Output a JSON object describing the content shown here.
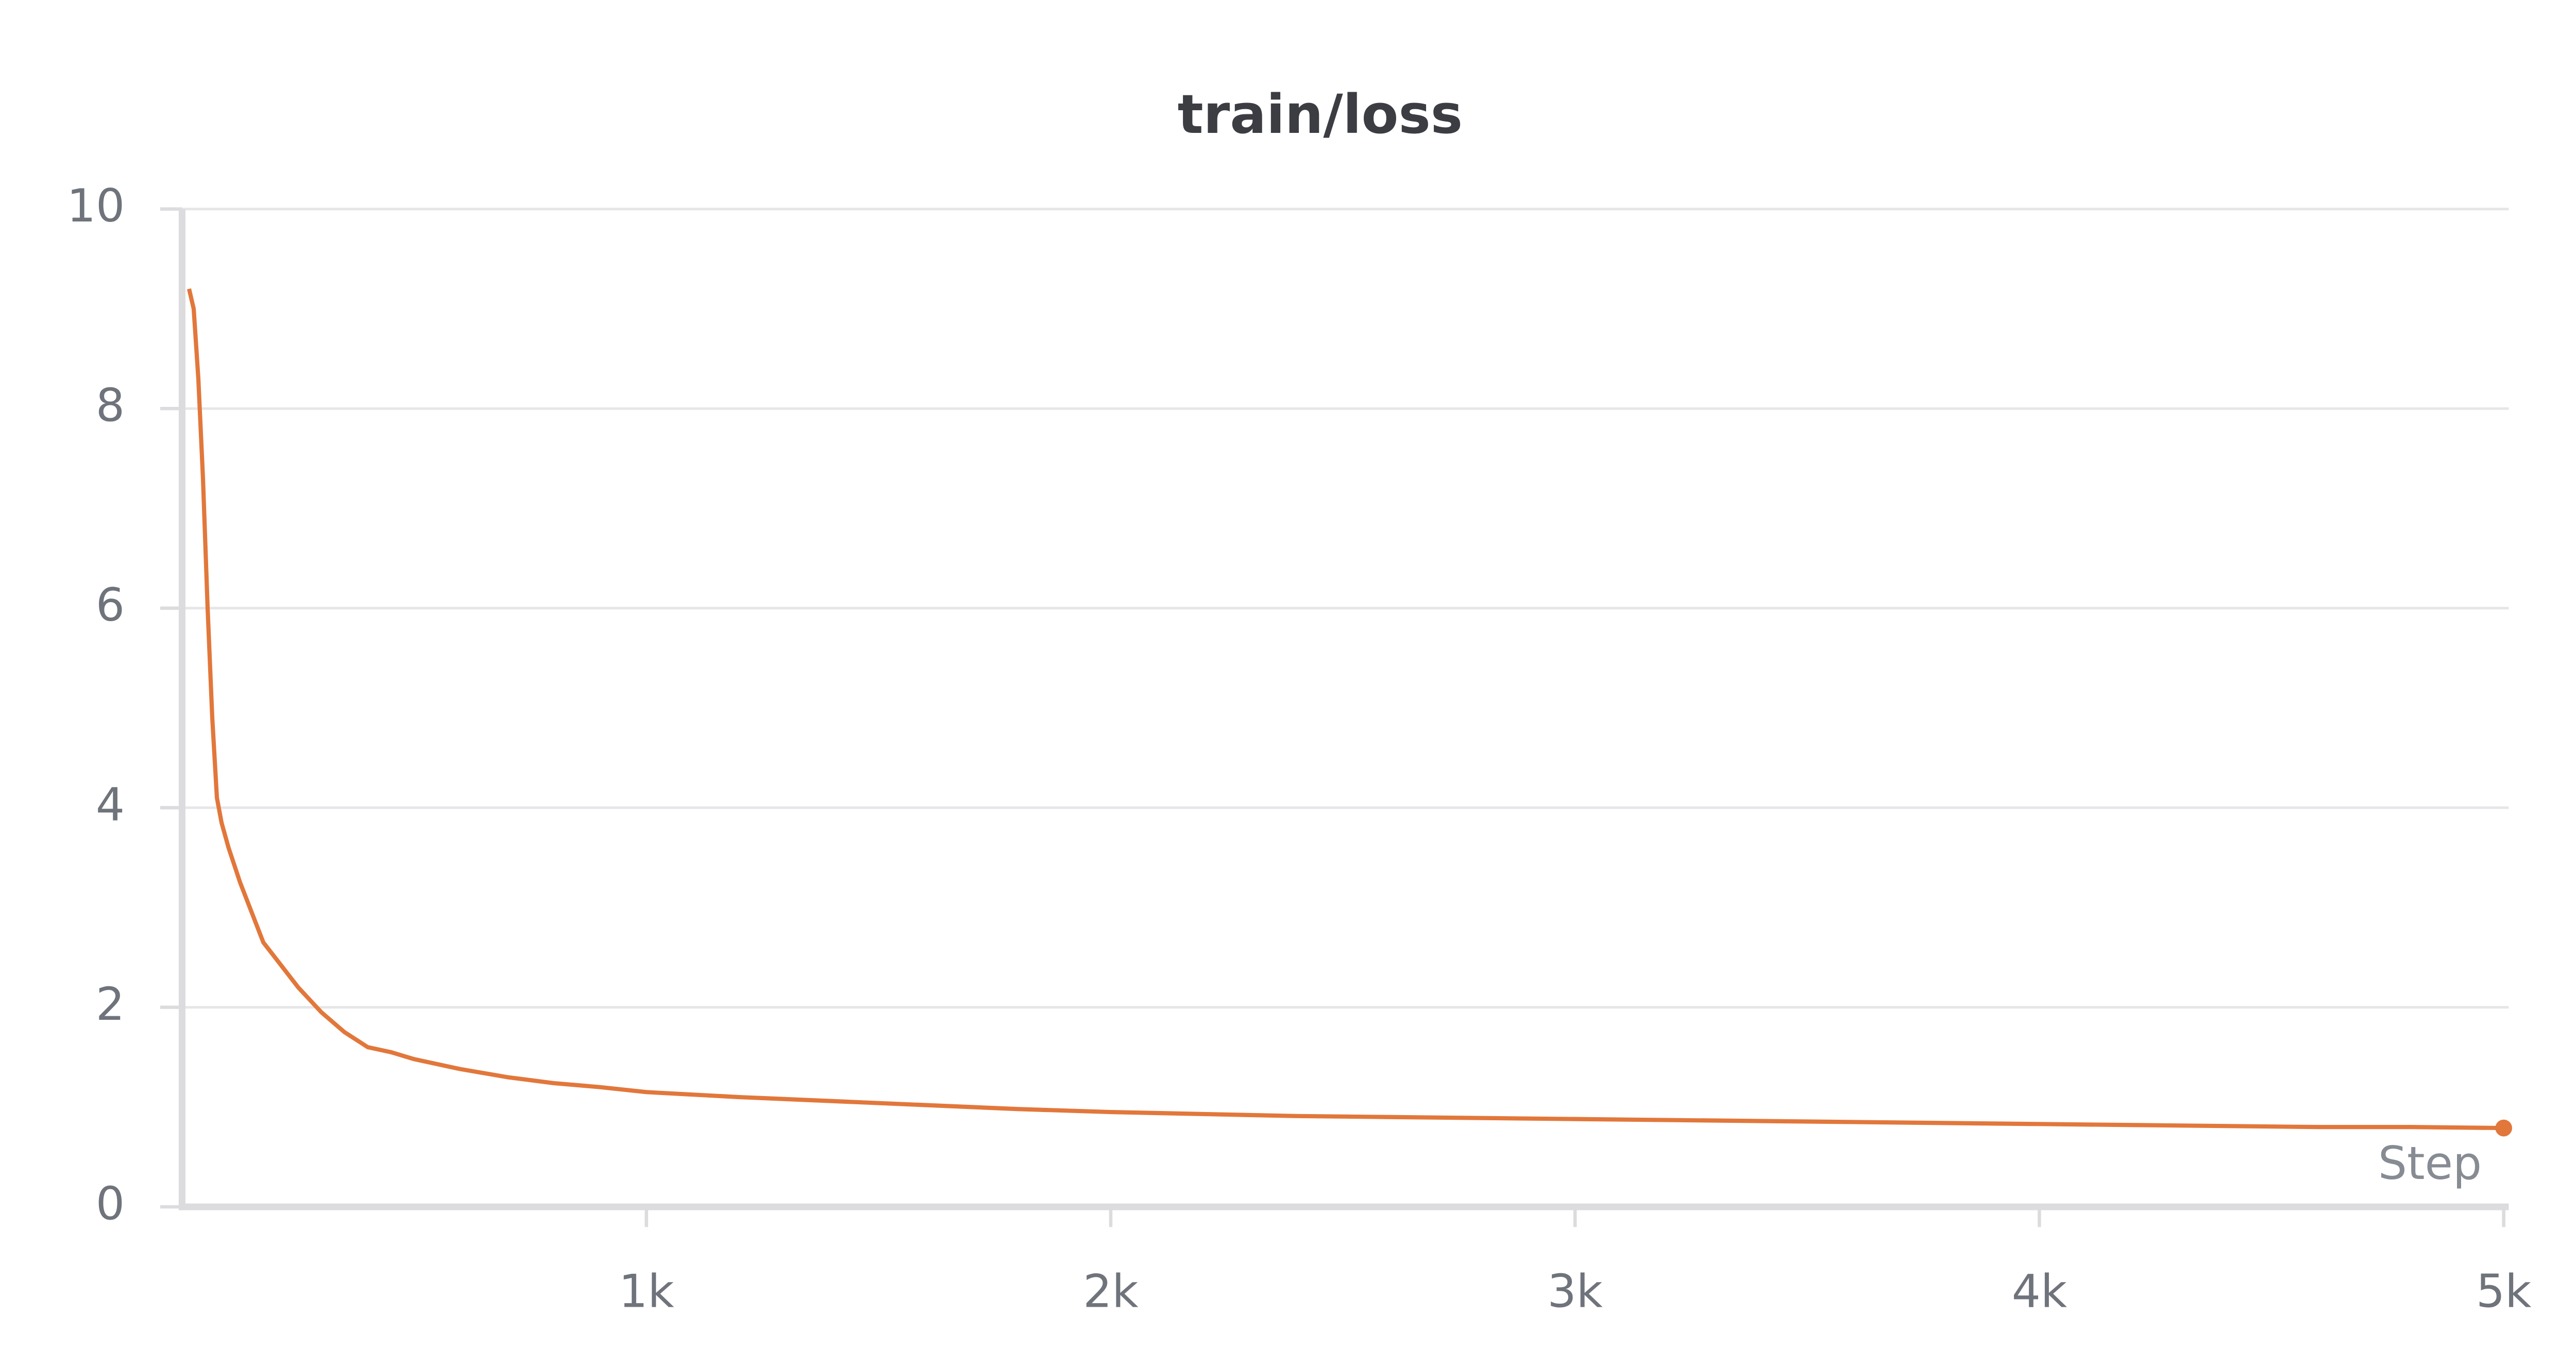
{
  "chart_data": {
    "type": "line",
    "title": "train/loss",
    "x_label": "Step",
    "x": [
      15,
      25,
      35,
      45,
      55,
      65,
      75,
      85,
      100,
      125,
      150,
      175,
      200,
      250,
      300,
      350,
      400,
      450,
      500,
      600,
      700,
      800,
      900,
      1000,
      1200,
      1400,
      1600,
      1800,
      2000,
      2200,
      2400,
      2600,
      2800,
      3000,
      3200,
      3400,
      3600,
      3800,
      4000,
      4200,
      4400,
      4600,
      4800,
      5000
    ],
    "series": [
      {
        "name": "train/loss",
        "color": "#e2773b",
        "values": [
          9.2,
          9.0,
          8.3,
          7.3,
          6.0,
          4.9,
          4.1,
          3.85,
          3.6,
          3.25,
          2.95,
          2.65,
          2.5,
          2.2,
          1.95,
          1.75,
          1.6,
          1.55,
          1.48,
          1.38,
          1.3,
          1.24,
          1.2,
          1.15,
          1.1,
          1.06,
          1.02,
          0.98,
          0.95,
          0.93,
          0.91,
          0.9,
          0.89,
          0.88,
          0.87,
          0.86,
          0.85,
          0.84,
          0.83,
          0.82,
          0.81,
          0.8,
          0.8,
          0.79
        ]
      }
    ],
    "xlim": [
      0,
      5000
    ],
    "ylim": [
      0,
      10
    ],
    "xticks": [
      {
        "value": 1000,
        "label": "1k"
      },
      {
        "value": 2000,
        "label": "2k"
      },
      {
        "value": 3000,
        "label": "3k"
      },
      {
        "value": 4000,
        "label": "4k"
      },
      {
        "value": 5000,
        "label": "5k"
      }
    ],
    "yticks": [
      0,
      2,
      4,
      6,
      8,
      10
    ],
    "grid": true
  }
}
